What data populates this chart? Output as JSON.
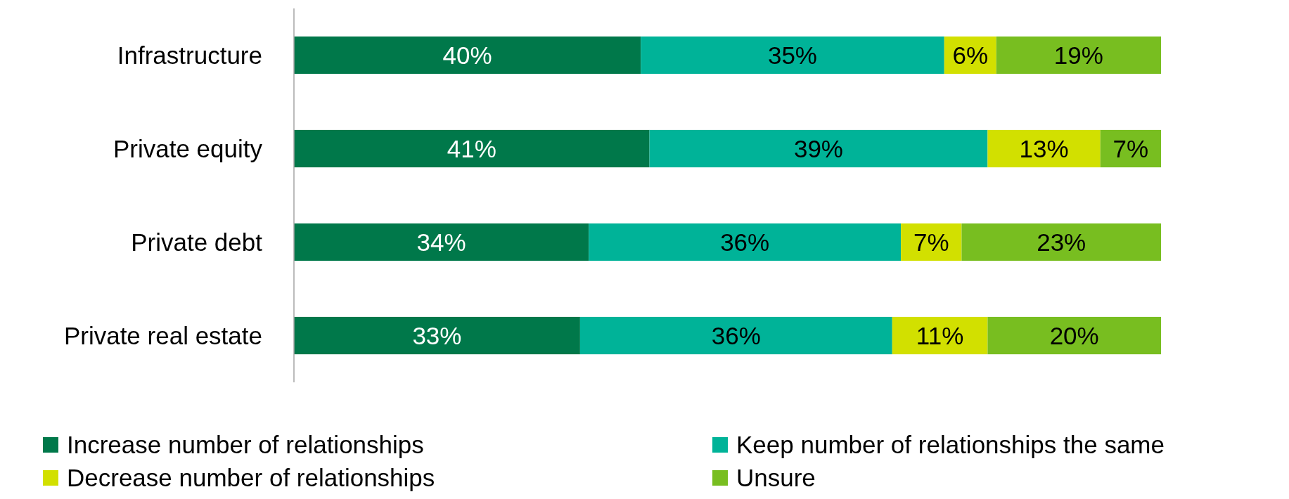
{
  "chart_data": {
    "type": "bar",
    "orientation": "horizontal",
    "stacked": true,
    "legend": "bottom",
    "categories": [
      "Infrastructure",
      "Private equity",
      "Private debt",
      "Private real estate"
    ],
    "series": [
      {
        "name": "Increase number of relationships",
        "color": "#00784a",
        "values": [
          40,
          41,
          34,
          33
        ],
        "value_labels": [
          "40%",
          "41%",
          "34%",
          "33%"
        ]
      },
      {
        "name": "Keep number of relationships the same",
        "color": "#00b398",
        "values": [
          35,
          39,
          36,
          36
        ],
        "value_labels": [
          "35%",
          "39%",
          "36%",
          "36%"
        ]
      },
      {
        "name": "Decrease number of relationships",
        "color": "#d2e000",
        "values": [
          6,
          13,
          7,
          11
        ],
        "value_labels": [
          "6%",
          "13%",
          "7%",
          "11%"
        ]
      },
      {
        "name": "Unsure",
        "color": "#78be20",
        "values": [
          19,
          7,
          23,
          20
        ],
        "value_labels": [
          "19%",
          "7%",
          "23%",
          "20%"
        ]
      }
    ]
  }
}
